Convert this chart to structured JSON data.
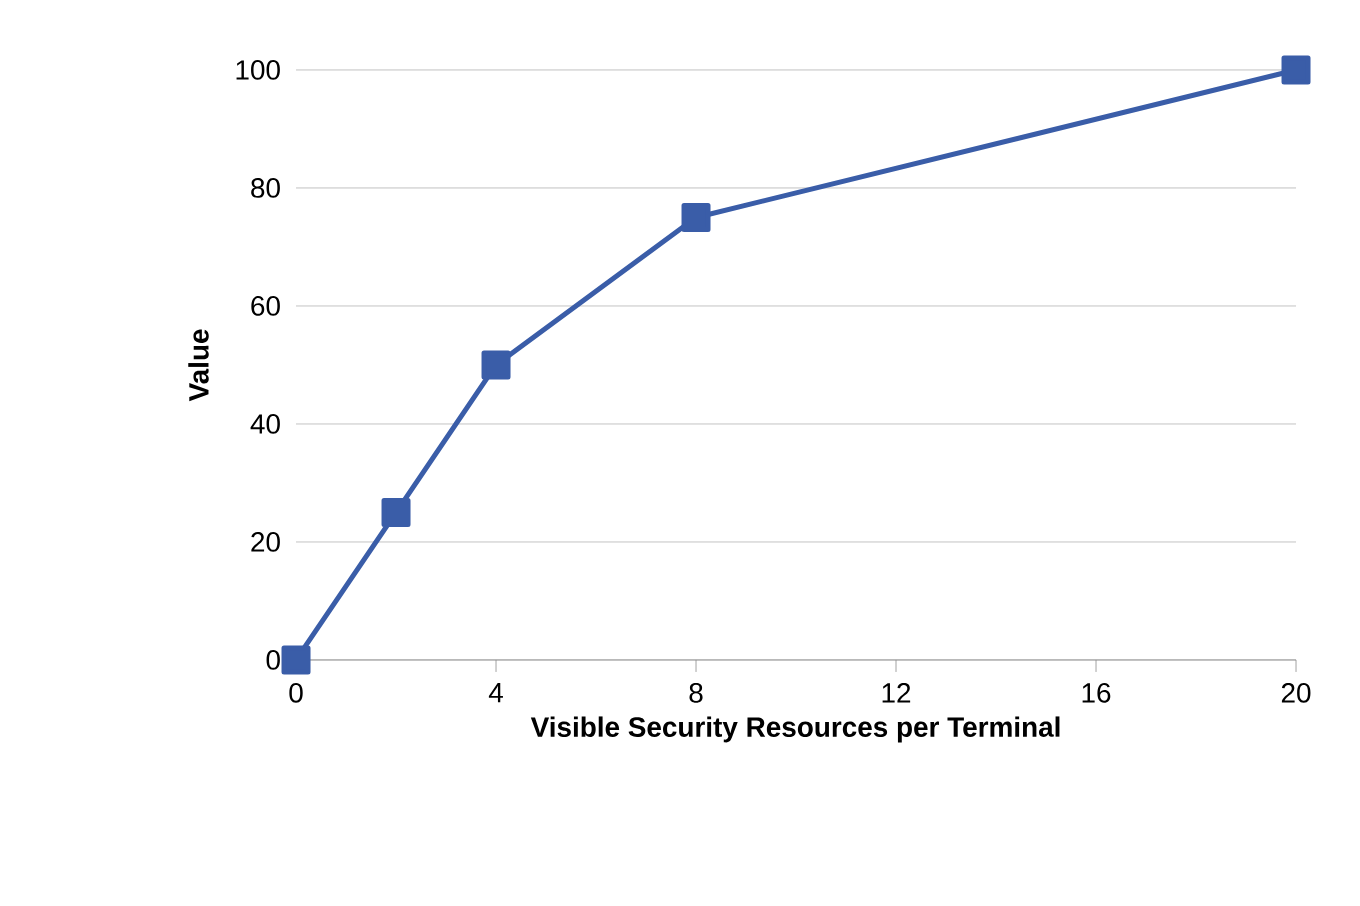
{
  "chart_data": {
    "type": "line",
    "xlabel": "Visible Security Resources per Terminal",
    "ylabel": "Value",
    "x": [
      0,
      2,
      4,
      8,
      20
    ],
    "series": [
      {
        "color": "#3a5da8",
        "values": [
          0,
          25,
          50,
          75,
          100
        ]
      }
    ],
    "xlim": [
      0,
      20
    ],
    "xticks": [
      0,
      4,
      8,
      12,
      16,
      20
    ],
    "ylim": [
      0,
      100
    ],
    "yticks": [
      0,
      20,
      40,
      60,
      80,
      100
    ],
    "grid": "y",
    "marker": "square",
    "line_style": "solid"
  }
}
